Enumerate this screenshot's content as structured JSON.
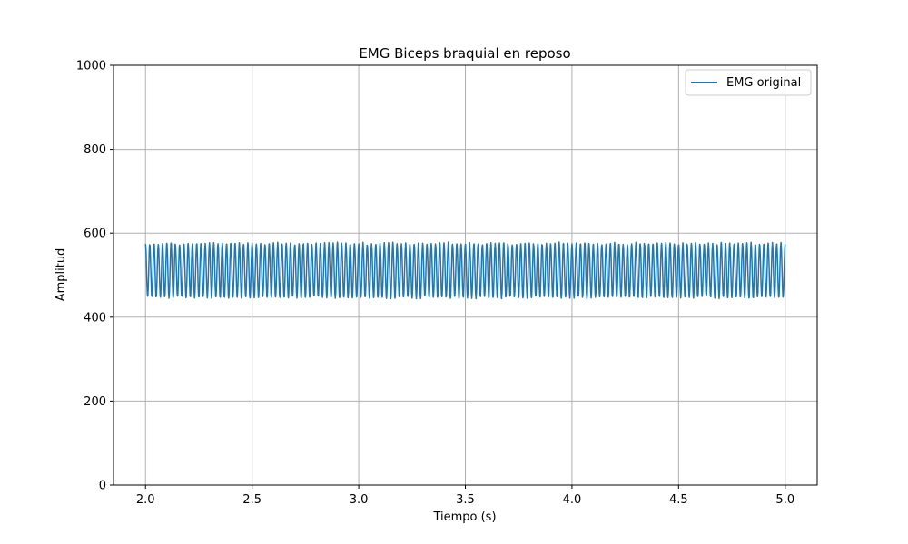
{
  "chart_data": {
    "type": "line",
    "title": "EMG Biceps braquial en reposo",
    "xlabel": "Tiempo (s)",
    "ylabel": "Amplitud",
    "xlim": [
      1.85,
      5.15
    ],
    "ylim": [
      0,
      1000
    ],
    "xticks": [
      2.0,
      2.5,
      3.0,
      3.5,
      4.0,
      4.5,
      5.0
    ],
    "xtick_labels": [
      "2.0",
      "2.5",
      "3.0",
      "3.5",
      "4.0",
      "4.5",
      "5.0"
    ],
    "yticks": [
      0,
      200,
      400,
      600,
      800,
      1000
    ],
    "ytick_labels": [
      "0",
      "200",
      "400",
      "600",
      "800",
      "1000"
    ],
    "grid": true,
    "legend_position": "top-right",
    "series": [
      {
        "name": "EMG original",
        "color": "#1f77b4",
        "signal": {
          "x_start": 2.0,
          "x_end": 5.0,
          "oscillation_frequency_hz": 50,
          "center": 511,
          "max_approx": 576,
          "min_approx": 446
        }
      }
    ]
  }
}
